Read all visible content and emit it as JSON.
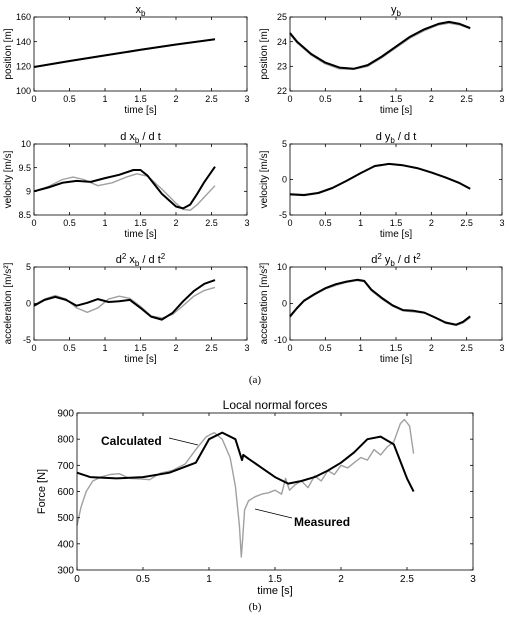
{
  "figure": {
    "caption_a": "(a)",
    "caption_b": "(b)"
  },
  "chart_data": [
    {
      "id": "xb",
      "type": "line",
      "title": "x",
      "title_sub": "b",
      "xlabel": "time [s]",
      "ylabel": "position [m]",
      "xlim": [
        0,
        3
      ],
      "ylim": [
        100,
        160
      ],
      "xticks": [
        "0",
        "0.5",
        "1",
        "1.5",
        "2",
        "2.5",
        "3"
      ],
      "yticks": [
        "100",
        "120",
        "140",
        "160"
      ],
      "grid": false,
      "series": [
        {
          "color": "#000000",
          "x": [
            0,
            0.5,
            1,
            1.5,
            2,
            2.5,
            2.55
          ],
          "y": [
            119.5,
            124.3,
            128.9,
            133.4,
            137.7,
            141.6,
            142.0
          ]
        },
        {
          "color": "#a0a0a0",
          "x": [
            0,
            0.5,
            1,
            1.5,
            2,
            2.5,
            2.55
          ],
          "y": [
            119.3,
            124.0,
            128.6,
            133.1,
            137.5,
            141.8,
            142.2
          ]
        }
      ]
    },
    {
      "id": "yb",
      "type": "line",
      "title": "y",
      "title_sub": "b",
      "xlabel": "time [s]",
      "ylabel": "position [m]",
      "xlim": [
        0,
        3
      ],
      "ylim": [
        22,
        25
      ],
      "xticks": [
        "0",
        "0.5",
        "1",
        "1.5",
        "2",
        "2.5",
        "3"
      ],
      "yticks": [
        "22",
        "23",
        "24",
        "25"
      ],
      "grid": false,
      "series": [
        {
          "color": "#000000",
          "x": [
            0,
            0.1,
            0.3,
            0.5,
            0.7,
            0.9,
            1.1,
            1.3,
            1.5,
            1.7,
            1.9,
            2.1,
            2.25,
            2.4,
            2.55
          ],
          "y": [
            24.35,
            24.0,
            23.5,
            23.15,
            22.95,
            22.9,
            23.05,
            23.4,
            23.8,
            24.2,
            24.5,
            24.72,
            24.8,
            24.72,
            24.55
          ]
        },
        {
          "color": "#a0a0a0",
          "x": [
            0,
            0.1,
            0.3,
            0.5,
            0.7,
            0.9,
            1.1,
            1.3,
            1.5,
            1.7,
            1.9,
            2.1,
            2.25,
            2.4,
            2.55
          ],
          "y": [
            24.3,
            23.95,
            23.45,
            23.1,
            22.9,
            22.88,
            23.0,
            23.35,
            23.75,
            24.15,
            24.45,
            24.68,
            24.75,
            24.68,
            24.52
          ]
        }
      ]
    },
    {
      "id": "dxb",
      "type": "line",
      "title": "d x",
      "title_sub": "b",
      "title_tail": " / d t",
      "xlabel": "time [s]",
      "ylabel": "velocity [m/s]",
      "xlim": [
        0,
        3
      ],
      "ylim": [
        8.5,
        10
      ],
      "xticks": [
        "0",
        "0.5",
        "1",
        "1.5",
        "2",
        "2.5",
        "3"
      ],
      "yticks": [
        "8.5",
        "9",
        "9.5",
        "10"
      ],
      "grid": false,
      "series": [
        {
          "color": "#000000",
          "x": [
            0,
            0.2,
            0.4,
            0.6,
            0.8,
            1.0,
            1.2,
            1.4,
            1.5,
            1.6,
            1.8,
            2.0,
            2.1,
            2.2,
            2.3,
            2.4,
            2.55
          ],
          "y": [
            9.0,
            9.08,
            9.18,
            9.22,
            9.2,
            9.28,
            9.35,
            9.45,
            9.45,
            9.33,
            8.95,
            8.68,
            8.64,
            8.72,
            8.95,
            9.2,
            9.52
          ]
        },
        {
          "color": "#a0a0a0",
          "x": [
            0,
            0.2,
            0.4,
            0.55,
            0.7,
            0.9,
            1.1,
            1.3,
            1.45,
            1.6,
            1.8,
            2.0,
            2.1,
            2.2,
            2.3,
            2.4,
            2.55
          ],
          "y": [
            9.0,
            9.1,
            9.25,
            9.3,
            9.25,
            9.12,
            9.18,
            9.3,
            9.37,
            9.32,
            9.05,
            8.75,
            8.62,
            8.6,
            8.72,
            8.88,
            9.12
          ]
        }
      ]
    },
    {
      "id": "dyb",
      "type": "line",
      "title": "d y",
      "title_sub": "b",
      "title_tail": " / d t",
      "xlabel": "time [s]",
      "ylabel": "velocity [m/s]",
      "xlim": [
        0,
        3
      ],
      "ylim": [
        -5,
        5
      ],
      "xticks": [
        "0",
        "0.5",
        "1",
        "1.5",
        "2",
        "2.5",
        "3"
      ],
      "yticks": [
        "-5",
        "0",
        "5"
      ],
      "grid": false,
      "series": [
        {
          "color": "#000000",
          "x": [
            0,
            0.2,
            0.4,
            0.6,
            0.8,
            1.0,
            1.2,
            1.4,
            1.6,
            1.8,
            2.0,
            2.2,
            2.4,
            2.55
          ],
          "y": [
            -2.1,
            -2.2,
            -1.9,
            -1.2,
            -0.2,
            0.9,
            1.9,
            2.2,
            2.0,
            1.6,
            1.0,
            0.3,
            -0.5,
            -1.3
          ]
        },
        {
          "color": "#a0a0a0",
          "x": [
            0,
            0.2,
            0.4,
            0.6,
            0.8,
            1.0,
            1.2,
            1.4,
            1.6,
            1.8,
            2.0,
            2.2,
            2.4,
            2.55
          ],
          "y": [
            -2.0,
            -2.1,
            -1.85,
            -1.15,
            -0.15,
            0.95,
            1.85,
            2.15,
            1.95,
            1.55,
            0.95,
            0.25,
            -0.55,
            -1.35
          ]
        }
      ]
    },
    {
      "id": "d2xb",
      "type": "line",
      "title": "d",
      "title_sup": "2",
      "title_mid": " x",
      "title_sub": "b",
      "title_tail": " / d t",
      "title_tail_sup": "2",
      "xlabel": "time [s]",
      "ylabel": "acceleration [m/s²]",
      "xlim": [
        0,
        3
      ],
      "ylim": [
        -5,
        5
      ],
      "xticks": [
        "0",
        "0.5",
        "1",
        "1.5",
        "2",
        "2.5",
        "3"
      ],
      "yticks": [
        "-5",
        "0",
        "5"
      ],
      "grid": false,
      "series": [
        {
          "color": "#000000",
          "x": [
            0,
            0.15,
            0.3,
            0.45,
            0.6,
            0.75,
            0.9,
            1.05,
            1.2,
            1.35,
            1.5,
            1.65,
            1.8,
            1.95,
            2.1,
            2.25,
            2.4,
            2.55
          ],
          "y": [
            -0.3,
            0.5,
            0.9,
            0.5,
            -0.3,
            0.1,
            0.6,
            0.2,
            0.3,
            0.5,
            -0.6,
            -1.8,
            -2.2,
            -1.3,
            0.3,
            1.7,
            2.7,
            3.2
          ]
        },
        {
          "color": "#a0a0a0",
          "x": [
            0,
            0.15,
            0.3,
            0.45,
            0.6,
            0.75,
            0.9,
            1.05,
            1.2,
            1.35,
            1.5,
            1.65,
            1.8,
            1.95,
            2.1,
            2.25,
            2.4,
            2.55
          ],
          "y": [
            -0.2,
            0.6,
            1.1,
            0.6,
            -0.6,
            -1.2,
            -0.6,
            0.6,
            1.0,
            0.7,
            -0.4,
            -1.7,
            -2.0,
            -1.5,
            -0.3,
            1.0,
            1.8,
            2.2
          ]
        }
      ]
    },
    {
      "id": "d2yb",
      "type": "line",
      "title": "d",
      "title_sup": "2",
      "title_mid": " y",
      "title_sub": "b",
      "title_tail": " / d t",
      "title_tail_sup": "2",
      "xlabel": "time [s]",
      "ylabel": "acceleration [m/s²]",
      "xlim": [
        0,
        3
      ],
      "ylim": [
        -10,
        10
      ],
      "xticks": [
        "0",
        "0.5",
        "1",
        "1.5",
        "2",
        "2.5",
        "3"
      ],
      "yticks": [
        "-10",
        "0",
        "10"
      ],
      "grid": false,
      "series": [
        {
          "color": "#000000",
          "x": [
            0,
            0.1,
            0.2,
            0.35,
            0.5,
            0.65,
            0.8,
            0.95,
            1.05,
            1.15,
            1.3,
            1.45,
            1.6,
            1.75,
            1.9,
            2.05,
            2.2,
            2.35,
            2.45,
            2.55
          ],
          "y": [
            -3.5,
            -1.2,
            0.8,
            2.6,
            4.2,
            5.3,
            6.0,
            6.5,
            6.2,
            3.8,
            1.5,
            -0.5,
            -1.8,
            -2.0,
            -2.5,
            -3.8,
            -5.2,
            -5.8,
            -5.0,
            -3.5
          ]
        },
        {
          "color": "#a0a0a0",
          "x": [
            0,
            0.1,
            0.2,
            0.35,
            0.5,
            0.65,
            0.8,
            0.95,
            1.05,
            1.15,
            1.3,
            1.45,
            1.6,
            1.75,
            1.9,
            2.05,
            2.2,
            2.35,
            2.45,
            2.55
          ],
          "y": [
            -3.8,
            -1.4,
            0.6,
            2.4,
            4.0,
            5.0,
            5.8,
            6.3,
            6.0,
            3.5,
            1.2,
            -0.7,
            -2.0,
            -2.3,
            -2.6,
            -3.9,
            -5.4,
            -6.0,
            -5.3,
            -3.9
          ]
        }
      ]
    },
    {
      "id": "forces",
      "type": "line",
      "title": "Local normal forces",
      "xlabel": "time [s]",
      "ylabel": "Force [N]",
      "xlim": [
        0,
        3
      ],
      "ylim": [
        300,
        900
      ],
      "xticks": [
        "0",
        "0.5",
        "1",
        "1.5",
        "2",
        "2.5",
        "3"
      ],
      "yticks": [
        "300",
        "400",
        "500",
        "600",
        "700",
        "800",
        "900"
      ],
      "grid": false,
      "annotations": [
        "Calculated",
        "Measured"
      ],
      "series": [
        {
          "name": "Calculated",
          "color": "#000000",
          "x": [
            0,
            0.1,
            0.3,
            0.5,
            0.7,
            0.9,
            1.0,
            1.1,
            1.2,
            1.25,
            1.26,
            1.3,
            1.4,
            1.5,
            1.6,
            1.7,
            1.8,
            1.9,
            2.0,
            2.1,
            2.2,
            2.3,
            2.4,
            2.5,
            2.55
          ],
          "y": [
            672,
            655,
            650,
            655,
            672,
            710,
            800,
            825,
            800,
            720,
            740,
            725,
            690,
            655,
            630,
            640,
            655,
            680,
            710,
            750,
            800,
            810,
            780,
            650,
            600
          ]
        },
        {
          "name": "Measured",
          "color": "#a0a0a0",
          "x": [
            0,
            0.03,
            0.07,
            0.12,
            0.18,
            0.25,
            0.32,
            0.4,
            0.48,
            0.55,
            0.63,
            0.72,
            0.82,
            0.9,
            0.98,
            1.04,
            1.1,
            1.16,
            1.2,
            1.23,
            1.245,
            1.255,
            1.27,
            1.3,
            1.35,
            1.4,
            1.45,
            1.5,
            1.55,
            1.58,
            1.61,
            1.65,
            1.7,
            1.75,
            1.8,
            1.85,
            1.9,
            1.95,
            2.0,
            2.05,
            2.1,
            2.15,
            2.2,
            2.25,
            2.3,
            2.35,
            2.4,
            2.45,
            2.48,
            2.52,
            2.55
          ],
          "y": [
            470,
            540,
            600,
            640,
            655,
            665,
            668,
            650,
            648,
            645,
            670,
            680,
            705,
            760,
            810,
            825,
            800,
            730,
            620,
            470,
            350,
            420,
            530,
            565,
            580,
            590,
            595,
            605,
            590,
            650,
            605,
            625,
            640,
            615,
            660,
            640,
            680,
            665,
            700,
            690,
            710,
            730,
            720,
            760,
            740,
            770,
            790,
            860,
            875,
            850,
            745
          ]
        }
      ]
    }
  ]
}
